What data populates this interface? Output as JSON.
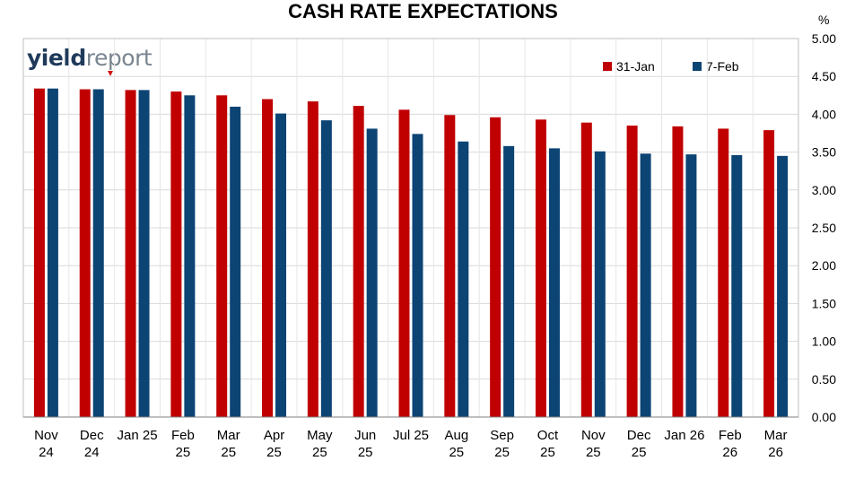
{
  "chart_data": {
    "type": "bar",
    "title": "CASH RATE EXPECTATIONS",
    "unit": "%",
    "categories": [
      [
        "Nov",
        "24"
      ],
      [
        "Dec",
        "24"
      ],
      [
        "Jan 25",
        ""
      ],
      [
        "Feb",
        "25"
      ],
      [
        "Mar",
        "25"
      ],
      [
        "Apr",
        "25"
      ],
      [
        "May",
        "25"
      ],
      [
        "Jun",
        "25"
      ],
      [
        "Jul 25",
        ""
      ],
      [
        "Aug",
        "25"
      ],
      [
        "Sep",
        "25"
      ],
      [
        "Oct",
        "25"
      ],
      [
        "Nov",
        "25"
      ],
      [
        "Dec",
        "25"
      ],
      [
        "Jan 26",
        ""
      ],
      [
        "Feb",
        "26"
      ],
      [
        "Mar",
        "26"
      ]
    ],
    "series": [
      {
        "name": "31-Jan",
        "color": "#c00000",
        "values": [
          4.34,
          4.33,
          4.32,
          4.3,
          4.25,
          4.2,
          4.17,
          4.11,
          4.06,
          3.99,
          3.96,
          3.93,
          3.89,
          3.85,
          3.84,
          3.81,
          3.79
        ]
      },
      {
        "name": "7-Feb",
        "color": "#0c4474",
        "values": [
          4.34,
          4.33,
          4.32,
          4.25,
          4.1,
          4.01,
          3.92,
          3.81,
          3.74,
          3.64,
          3.58,
          3.55,
          3.51,
          3.48,
          3.47,
          3.46,
          3.45
        ]
      }
    ],
    "ylim": [
      0,
      5
    ],
    "yticks": [
      "0.00",
      "0.50",
      "1.00",
      "1.50",
      "2.00",
      "2.50",
      "3.00",
      "3.50",
      "4.00",
      "4.50",
      "5.00"
    ],
    "y_axis_position": "right",
    "grid": true,
    "legend_position": "top-right"
  },
  "logo": {
    "part1": "yield",
    "part2": "report"
  }
}
